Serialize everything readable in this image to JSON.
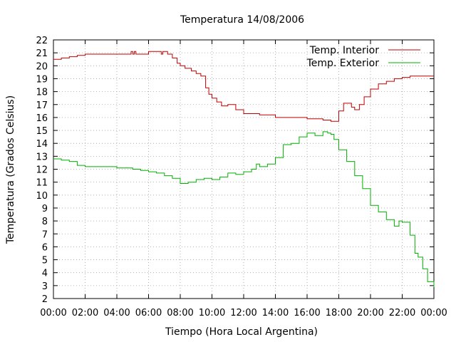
{
  "chart_data": {
    "type": "line",
    "title": "Temperatura 14/08/2006",
    "xlabel": "Tiempo (Hora Local Argentina)",
    "ylabel": "Temperatura (Grados Celsius)",
    "xlim": [
      0,
      24
    ],
    "ylim": [
      2,
      22
    ],
    "x_tick_labels": [
      "00:00",
      "02:00",
      "04:00",
      "06:00",
      "08:00",
      "10:00",
      "12:00",
      "14:00",
      "16:00",
      "18:00",
      "20:00",
      "22:00",
      "00:00"
    ],
    "y_ticks": [
      2,
      3,
      4,
      5,
      6,
      7,
      8,
      9,
      10,
      11,
      12,
      13,
      14,
      15,
      16,
      17,
      18,
      19,
      20,
      21,
      22
    ],
    "grid": true,
    "legend_position": "top-right",
    "series": [
      {
        "name": "Temp. Interior",
        "color": "#c00000",
        "x": [
          0,
          0.5,
          1,
          1.5,
          2,
          3,
          4,
          4.8,
          4.9,
          5,
          5.1,
          5.2,
          5.5,
          6,
          6.5,
          6.8,
          6.9,
          7,
          7.2,
          7.5,
          7.8,
          8,
          8.3,
          8.7,
          9,
          9.3,
          9.6,
          9.8,
          10,
          10.3,
          10.6,
          11,
          11.5,
          12,
          13,
          14,
          15,
          16,
          16.5,
          17,
          17.3,
          17.5,
          17.7,
          18,
          18.3,
          18.6,
          18.8,
          19,
          19.3,
          19.6,
          20,
          20.5,
          21,
          21.5,
          22,
          22.5,
          23,
          23.5,
          24
        ],
        "y": [
          20.5,
          20.6,
          20.7,
          20.8,
          20.9,
          20.9,
          20.9,
          20.9,
          21.1,
          20.9,
          21.1,
          20.9,
          20.9,
          21.1,
          21.1,
          20.9,
          21.1,
          21.1,
          20.9,
          20.6,
          20.2,
          20.0,
          19.8,
          19.6,
          19.4,
          19.2,
          18.3,
          17.8,
          17.5,
          17.2,
          16.9,
          17.0,
          16.6,
          16.3,
          16.2,
          16.0,
          16.0,
          15.9,
          15.9,
          15.8,
          15.8,
          15.7,
          15.7,
          16.5,
          17.1,
          17.1,
          16.8,
          16.6,
          17.0,
          17.6,
          18.2,
          18.6,
          18.8,
          19.0,
          19.1,
          19.2,
          19.2,
          19.2,
          19.2
        ]
      },
      {
        "name": "Temp. Exterior",
        "color": "#00b000",
        "x": [
          0,
          0.5,
          1,
          1.5,
          2,
          3,
          4,
          4.5,
          5,
          5.5,
          6,
          6.5,
          7,
          7.5,
          8,
          8.5,
          9,
          9.5,
          10,
          10.5,
          11,
          11.5,
          12,
          12.5,
          12.8,
          13,
          13.5,
          14,
          14.5,
          15,
          15.5,
          16,
          16.5,
          17,
          17.3,
          17.5,
          17.7,
          18,
          18.5,
          19,
          19.5,
          20,
          20.5,
          21,
          21.5,
          21.8,
          22,
          22.5,
          22.8,
          23,
          23.3,
          23.6,
          24
        ],
        "y": [
          12.8,
          12.7,
          12.6,
          12.3,
          12.2,
          12.2,
          12.1,
          12.1,
          12.0,
          11.9,
          11.8,
          11.7,
          11.5,
          11.3,
          10.9,
          11.0,
          11.2,
          11.3,
          11.2,
          11.4,
          11.7,
          11.6,
          11.8,
          12.0,
          12.4,
          12.2,
          12.4,
          12.9,
          13.9,
          14.0,
          14.5,
          14.8,
          14.6,
          14.9,
          14.8,
          14.7,
          14.3,
          13.5,
          12.6,
          11.5,
          10.5,
          9.2,
          8.7,
          8.1,
          7.6,
          8.0,
          7.9,
          6.9,
          5.5,
          5.2,
          4.3,
          3.3,
          2.9
        ]
      }
    ]
  }
}
